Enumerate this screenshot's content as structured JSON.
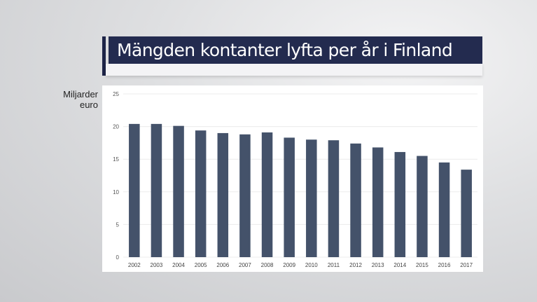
{
  "title": "Mängden kontanter lyfta per år i Finland",
  "chart_data": {
    "type": "bar",
    "title": "Mängden kontanter lyfta per år i Finland",
    "ylabel_lines": [
      "Miljarder",
      "euro"
    ],
    "xlabel": "",
    "categories": [
      "2002",
      "2003",
      "2004",
      "2005",
      "2006",
      "2007",
      "2008",
      "2009",
      "2010",
      "2011",
      "2012",
      "2013",
      "2014",
      "2015",
      "2016",
      "2017"
    ],
    "values": [
      20.4,
      20.4,
      20.1,
      19.4,
      19.0,
      18.8,
      19.1,
      18.3,
      18.0,
      17.9,
      17.4,
      16.8,
      16.1,
      15.5,
      14.5,
      13.4
    ],
    "ylim": [
      0,
      25
    ],
    "yticks": [
      0,
      5,
      10,
      15,
      20,
      25
    ],
    "grid": true,
    "bar_color": "#44526a"
  }
}
